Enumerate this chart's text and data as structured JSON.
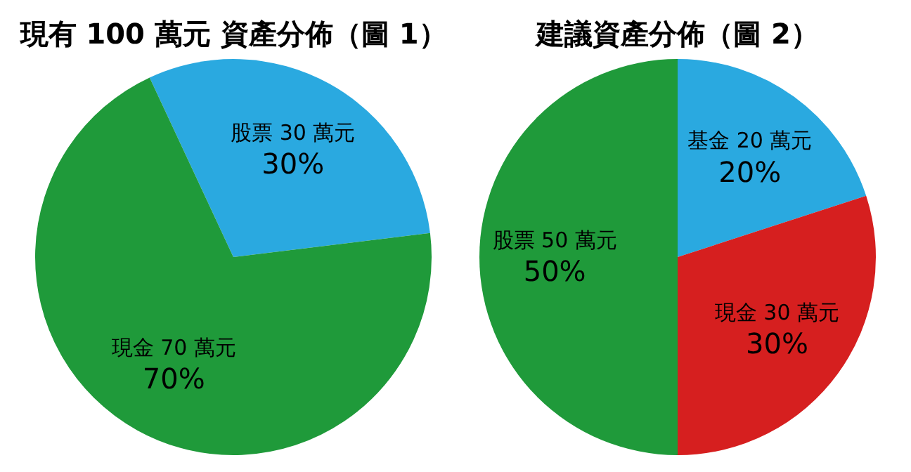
{
  "chart_data": [
    {
      "type": "pie",
      "title": "現有 100 萬元 資產分佈（圖 1）",
      "categories": [
        "股票 30 萬元",
        "現金 70 萬元"
      ],
      "values": [
        30,
        70
      ],
      "value_labels": [
        "30%",
        "70%"
      ],
      "colors": [
        "#2aa9e0",
        "#1f9a3a"
      ]
    },
    {
      "type": "pie",
      "title": "建議資產分佈（圖 2）",
      "categories": [
        "基金 20 萬元",
        "現金 30 萬元",
        "股票 50 萬元"
      ],
      "values": [
        20,
        30,
        50
      ],
      "value_labels": [
        "20%",
        "30%",
        "50%"
      ],
      "colors": [
        "#2aa9e0",
        "#d61f1f",
        "#1f9a3a"
      ]
    }
  ]
}
